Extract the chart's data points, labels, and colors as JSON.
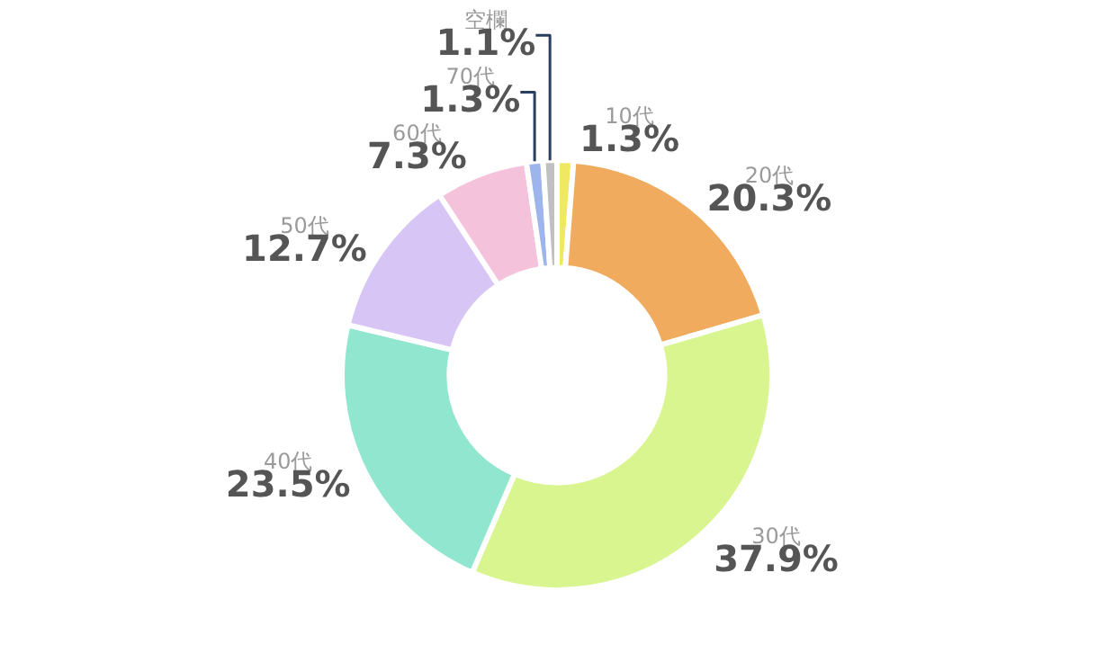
{
  "chart_data": {
    "type": "donut",
    "categories": [
      "10代",
      "20代",
      "30代",
      "40代",
      "50代",
      "60代",
      "70代",
      "空欄"
    ],
    "values": [
      1.3,
      20.3,
      37.9,
      23.5,
      12.7,
      7.3,
      1.3,
      1.1
    ],
    "colors": [
      "#f0e860",
      "#f0ab5e",
      "#d8f590",
      "#90e6cf",
      "#d7c6f5",
      "#f5c2dc",
      "#9db4ec",
      "#c0c0c0"
    ],
    "value_labels": [
      "1.3%",
      "20.3%",
      "37.9%",
      "23.5%",
      "12.7%",
      "7.3%",
      "1.3%",
      "1.1%"
    ],
    "legend": false
  }
}
